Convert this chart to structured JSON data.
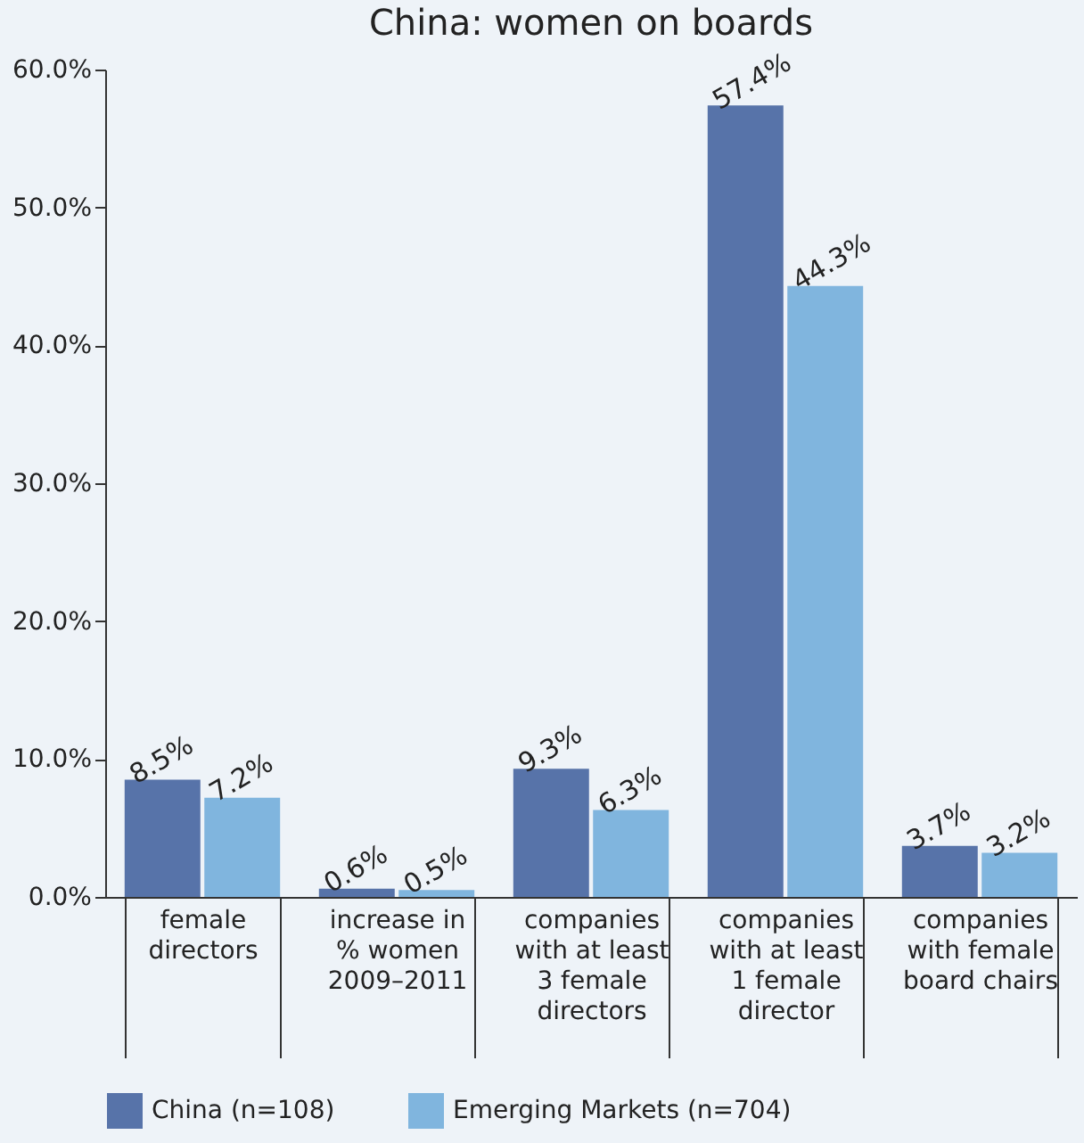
{
  "chart_data": {
    "type": "bar",
    "title": "China: women on boards",
    "categories": [
      "female\ndirectors",
      "increase in\n% women\n2009–2011",
      "companies\nwith at least\n3 female\ndirectors",
      "companies\nwith at least\n1 female\ndirector",
      "companies\nwith female\nboard chairs"
    ],
    "series": [
      {
        "name": "China (n=108)",
        "color": "#5773a9",
        "values": [
          8.5,
          0.6,
          9.3,
          57.4,
          3.7
        ],
        "value_labels": [
          "8.5%",
          "0.6%",
          "9.3%",
          "57.4%",
          "3.7%"
        ]
      },
      {
        "name": "Emerging Markets (n=704)",
        "color": "#80b5de",
        "values": [
          7.2,
          0.5,
          6.3,
          44.3,
          3.2
        ],
        "value_labels": [
          "7.2%",
          "0.5%",
          "6.3%",
          "44.3%",
          "3.2%"
        ]
      }
    ],
    "ylim": [
      0,
      60
    ],
    "yticks": [
      {
        "value": 0,
        "label": "0.0%"
      },
      {
        "value": 10,
        "label": "10.0%"
      },
      {
        "value": 20,
        "label": "20.0%"
      },
      {
        "value": 30,
        "label": "30.0%"
      },
      {
        "value": 40,
        "label": "40.0%"
      },
      {
        "value": 50,
        "label": "50.0%"
      },
      {
        "value": 60,
        "label": "60.0%"
      }
    ],
    "grid": false,
    "legend": "bottom"
  }
}
